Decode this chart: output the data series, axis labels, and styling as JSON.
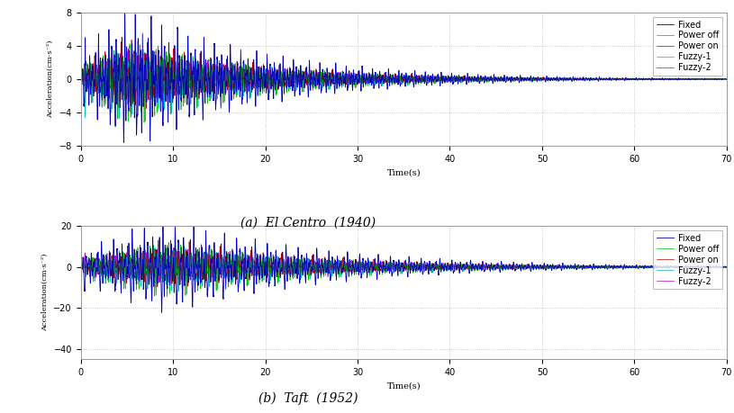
{
  "subplot_a": {
    "title": "(a)  El Centro  (1940)",
    "xlabel": "Time(s)",
    "ylabel": "Acceleration(cm·s⁻²)",
    "xlim": [
      0,
      70
    ],
    "ylim": [
      -8,
      8
    ],
    "yticks": [
      -8,
      -4,
      0,
      4,
      8
    ],
    "xticks": [
      0,
      10,
      20,
      30,
      40,
      50,
      60,
      70
    ],
    "duration": 70,
    "dt": 0.005,
    "peak_time": 5.5,
    "peak_val": 5.5,
    "decay_rate": 0.07,
    "freq_base": 3.5,
    "active_end": 70
  },
  "subplot_b": {
    "title": "(b)  Taft  (1952)",
    "xlabel": "Time(s)",
    "ylabel": "Acceleration(cm·s⁻²)",
    "xlim": [
      0,
      70
    ],
    "ylim": [
      -45,
      20
    ],
    "yticks": [
      -40,
      -20,
      0,
      20
    ],
    "xticks": [
      0,
      10,
      20,
      30,
      40,
      50,
      60,
      70
    ],
    "duration": 70,
    "dt": 0.005,
    "peak_time": 9.5,
    "peak_val": 15.0,
    "decay_rate": 0.06,
    "freq_base": 3.0,
    "active_end": 70
  },
  "series": [
    "Fixed",
    "Power off",
    "Power on",
    "Fuzzy-1",
    "Fuzzy-2"
  ],
  "colors": [
    "#0000bb",
    "#00bb00",
    "#bb0000",
    "#00bbbb",
    "#bb00bb"
  ],
  "linewidths": [
    0.6,
    0.5,
    0.5,
    0.5,
    0.5
  ],
  "reduction_factors": [
    1.0,
    0.62,
    0.58,
    0.55,
    0.52
  ],
  "fig_bgcolor": "#ffffff",
  "ax_bgcolor": "#ffffff",
  "grid_color": "#bbbbbb",
  "title_fontsize": 10,
  "label_fontsize": 7,
  "tick_fontsize": 7,
  "legend_fontsize": 7
}
